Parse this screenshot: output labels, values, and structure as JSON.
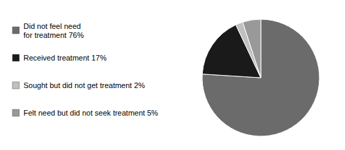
{
  "chart_data": {
    "type": "pie",
    "categories": [
      "Did not feel need\nfor treatment 76%",
      "Received treatment 17%",
      "Sought but did not get treatment 2%",
      "Felt need but did not seek treatment 5%"
    ],
    "values": [
      76,
      17,
      2,
      5
    ],
    "colors": [
      "#6b6b6b",
      "#1a1a1a",
      "#c0c0c0",
      "#999999"
    ]
  }
}
